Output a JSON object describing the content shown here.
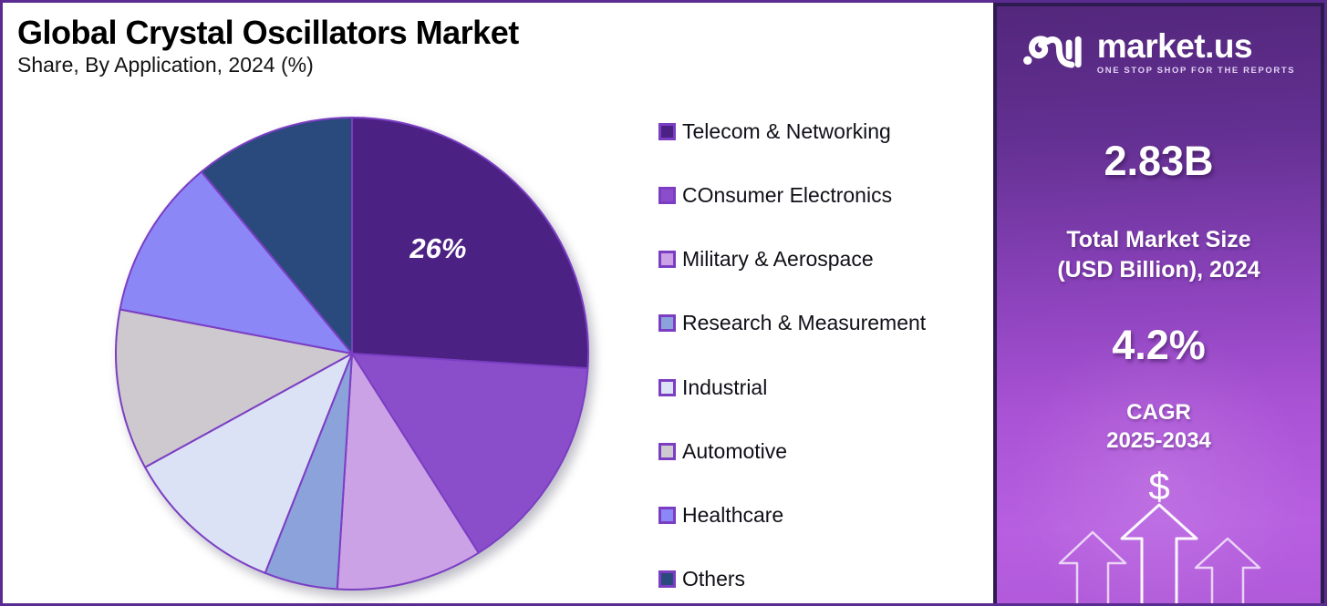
{
  "header": {
    "title": "Global Crystal Oscillators Market",
    "subtitle": "Share, By Application, 2024 (%)"
  },
  "chart_data": {
    "type": "pie",
    "title": "Global Crystal Oscillators Market Share, By Application, 2024 (%)",
    "unit": "%",
    "start_angle_deg": 0,
    "direction": "clockwise",
    "legend_position": "right",
    "stroke_color": "#7b3ec3",
    "slices": [
      {
        "label": "Telecom & Networking",
        "value": 26,
        "color": "#4c2184",
        "data_label": "26%"
      },
      {
        "label": "COnsumer Electronics",
        "value": 15,
        "color": "#8a4ecb"
      },
      {
        "label": "Military & Aerospace",
        "value": 10,
        "color": "#cba2e5"
      },
      {
        "label": "Research & Measurement",
        "value": 5,
        "color": "#8ca2db"
      },
      {
        "label": "Industrial",
        "value": 11,
        "color": "#dce2f5"
      },
      {
        "label": "Automotive",
        "value": 11,
        "color": "#cdc9ce"
      },
      {
        "label": "Healthcare",
        "value": 11,
        "color": "#8b87f7"
      },
      {
        "label": "Others",
        "value": 11,
        "color": "#2a4a7d"
      }
    ]
  },
  "sidebar": {
    "brand": {
      "name": "market.us",
      "tagline": "ONE STOP SHOP FOR THE REPORTS"
    },
    "market_size": {
      "value": "2.83B",
      "label_line1": "Total Market Size",
      "label_line2": "(USD Billion), 2024"
    },
    "cagr": {
      "value": "4.2%",
      "label_line1": "CAGR",
      "label_line2": "2025-2034"
    },
    "dollar_symbol": "$",
    "colors": {
      "gradient_top": "#53277c",
      "gradient_bottom": "#b75fe0",
      "border": "#2d1b50"
    }
  }
}
